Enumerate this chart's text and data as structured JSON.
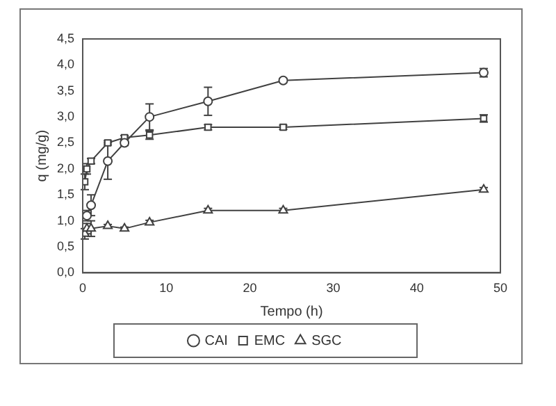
{
  "chart_data": {
    "type": "line",
    "xlabel": "Tempo (h)",
    "ylabel": "q (mg/g)",
    "xlim": [
      0,
      50
    ],
    "xticks": [
      0,
      10,
      20,
      30,
      40,
      50
    ],
    "ylim": [
      0,
      4.5
    ],
    "yticks": [
      {
        "value": 0,
        "label": "0,0"
      },
      {
        "value": 0.5,
        "label": "0,5"
      },
      {
        "value": 1,
        "label": "1,0"
      },
      {
        "value": 1.5,
        "label": "1,5"
      },
      {
        "value": 2,
        "label": "2,0"
      },
      {
        "value": 2.5,
        "label": "2,5"
      },
      {
        "value": 3,
        "label": "3,0"
      },
      {
        "value": 3.5,
        "label": "3,5"
      },
      {
        "value": 4,
        "label": "4,0"
      },
      {
        "value": 4.5,
        "label": "4,5"
      }
    ],
    "grid": false,
    "legend": "bottom",
    "line_style": "solid",
    "x": [
      0.25,
      0.5,
      1,
      3,
      5,
      8,
      15,
      24,
      48
    ],
    "series": [
      {
        "name": "CAI",
        "color": "#404040",
        "marker": "circle",
        "values": [
          null,
          1.1,
          1.3,
          2.15,
          2.5,
          3.0,
          3.3,
          3.7,
          3.85
        ],
        "errors": [
          null,
          0.1,
          0.2,
          0.35,
          0.05,
          0.25,
          0.27,
          0.04,
          0.08
        ]
      },
      {
        "name": "EMC",
        "color": "#404040",
        "marker": "square",
        "values": [
          1.75,
          2.0,
          2.15,
          2.5,
          2.6,
          2.65,
          2.8,
          2.8,
          2.97
        ],
        "errors": [
          0.15,
          0.1,
          0.05,
          0.04,
          0.04,
          0.08,
          0.05,
          0.04,
          0.07
        ]
      },
      {
        "name": "SGC",
        "color": "#404040",
        "marker": "triangle",
        "values": [
          0.75,
          0.85,
          0.85,
          0.9,
          0.85,
          0.97,
          1.2,
          1.2,
          1.6
        ],
        "errors": [
          0.1,
          0.1,
          0.15,
          0.03,
          0.03,
          0.04,
          0.04,
          0.04,
          0.04
        ]
      }
    ]
  }
}
